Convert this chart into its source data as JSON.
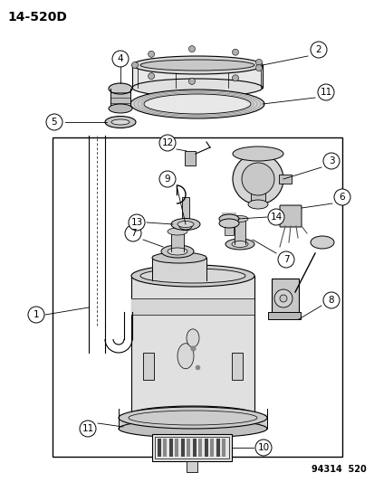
{
  "title_code": "14-520D",
  "bg_color": "#ffffff",
  "line_color": "#000000",
  "watermark": "94314  520",
  "figsize": [
    4.14,
    5.33
  ],
  "dpi": 100
}
